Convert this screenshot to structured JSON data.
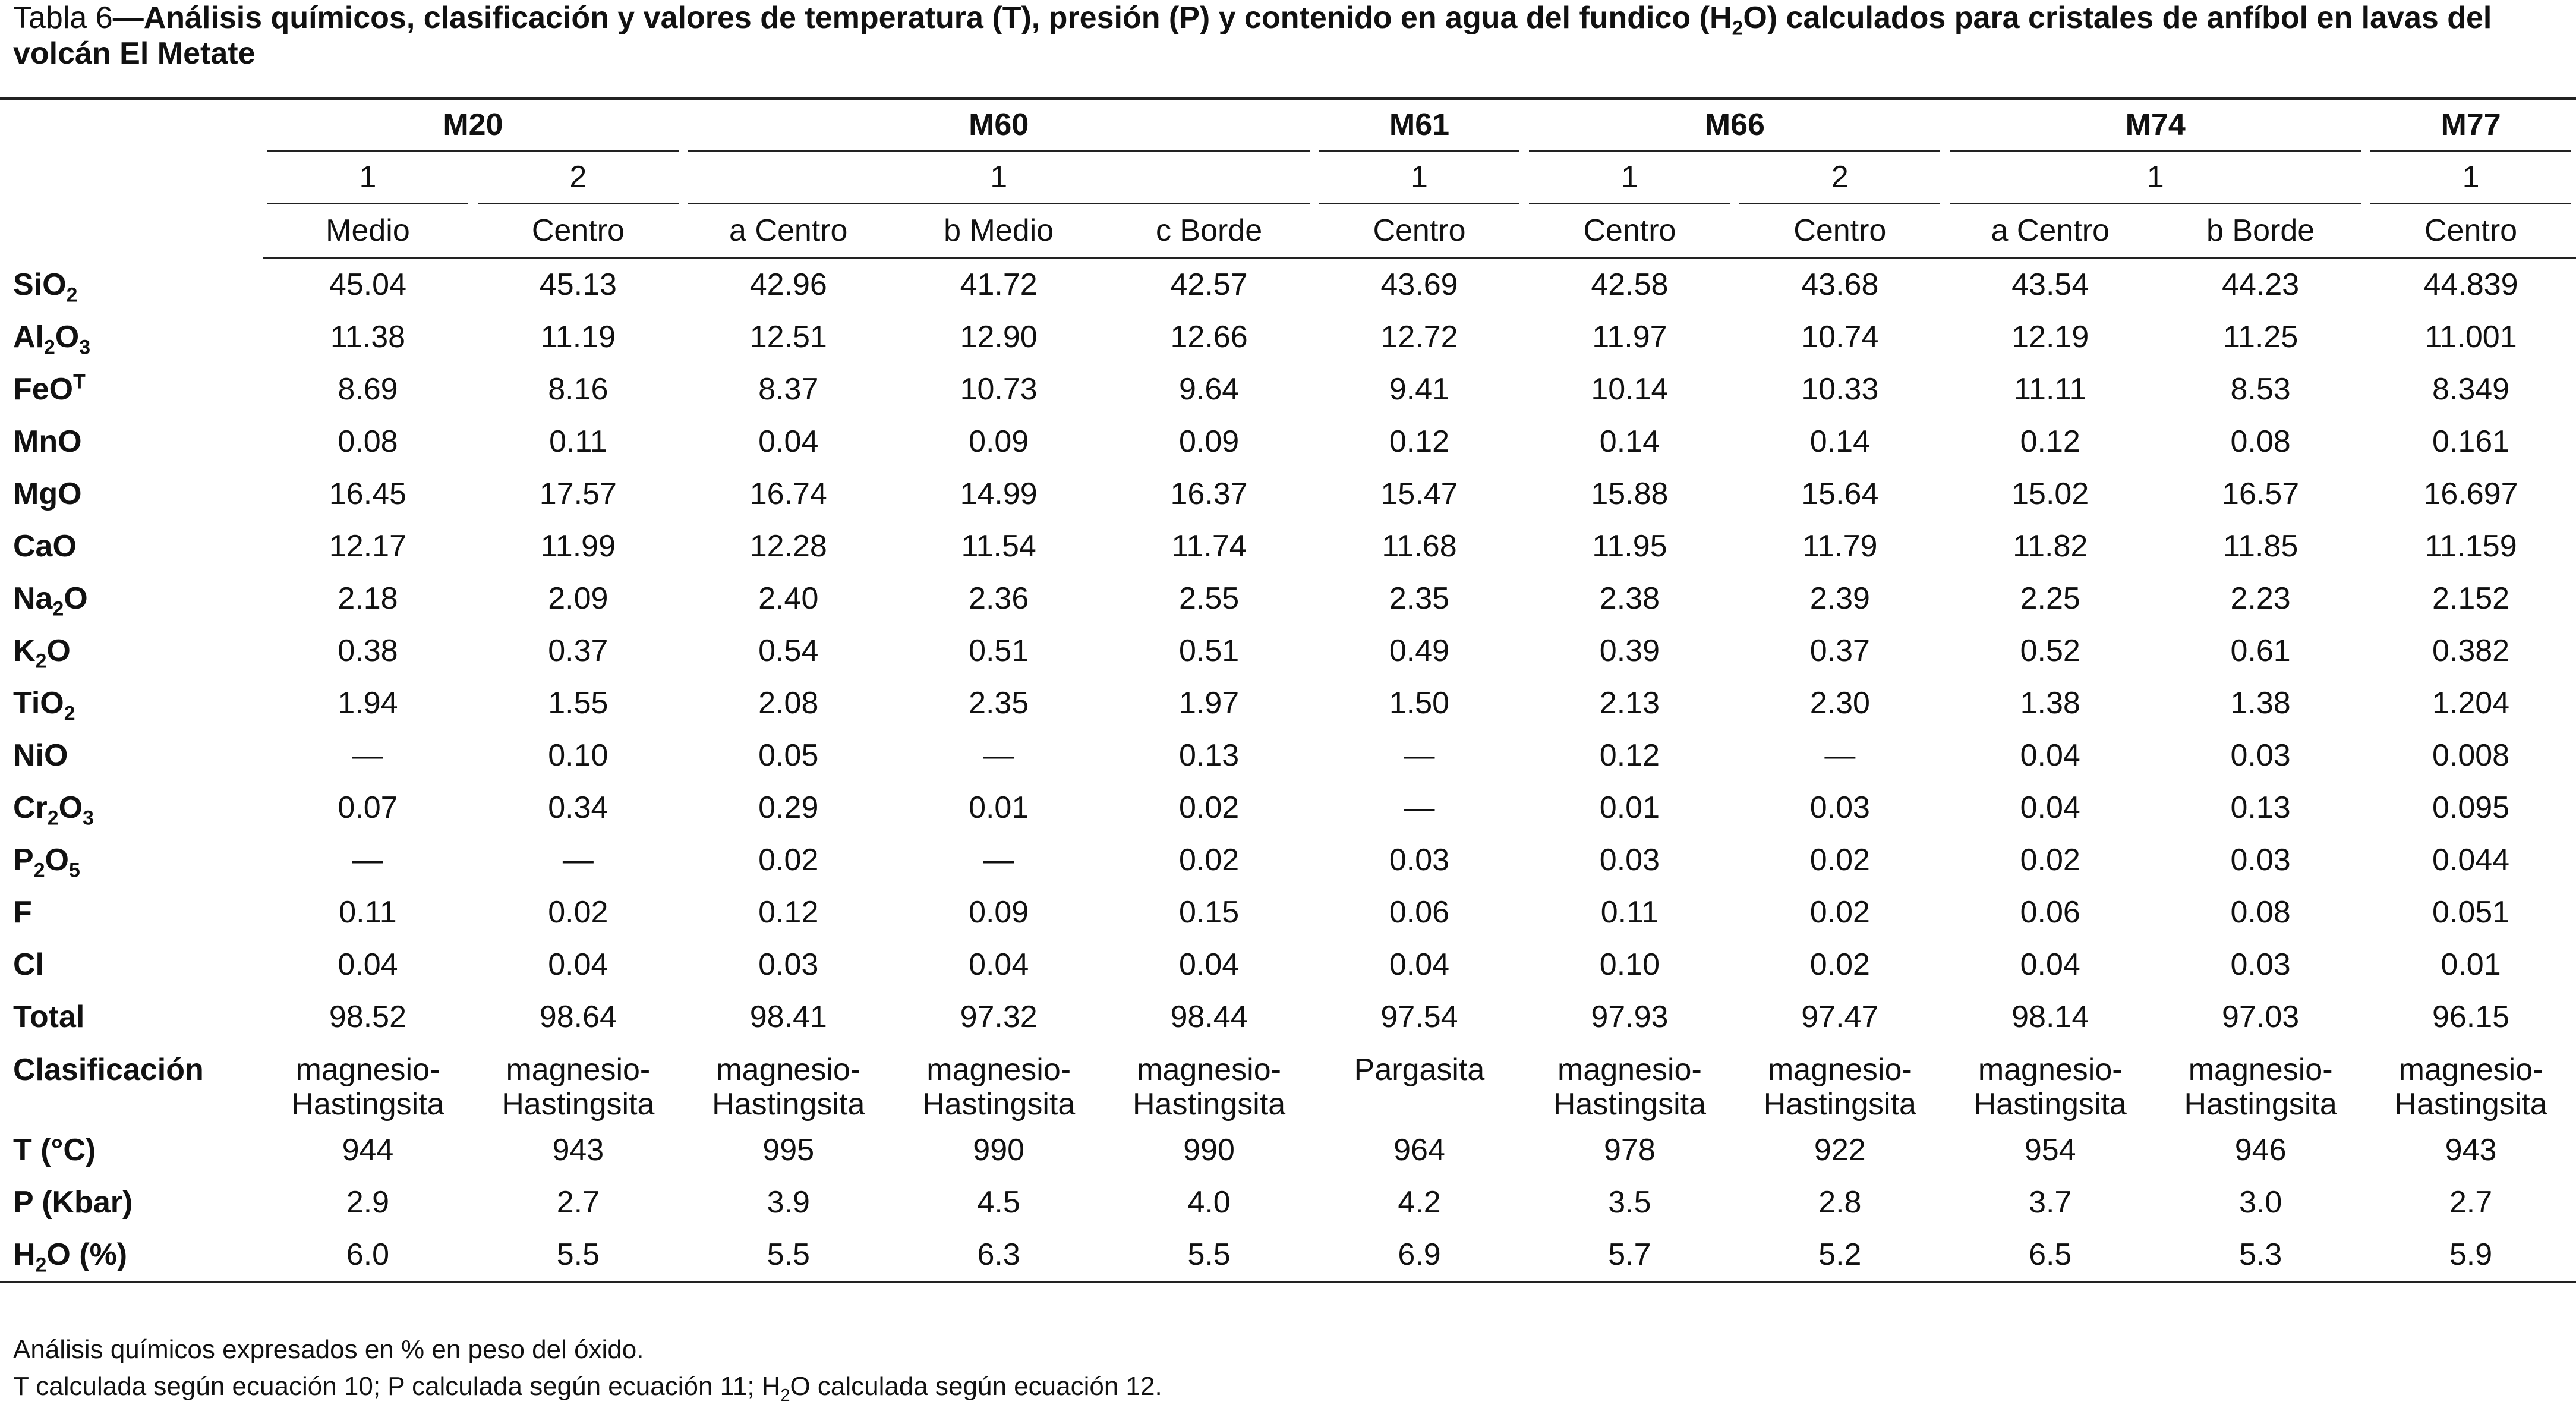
{
  "caption": [
    {
      "text": "Tabla 6"
    },
    {
      "text": "—Análisis químicos, clasificación y valores de temperatura (T), presión (P) y contenido en agua del fundico (H",
      "bold": true
    },
    {
      "text": "2",
      "bold": true,
      "script": "sub"
    },
    {
      "text": "O) calculados para cristales de anfíbol en lavas del volcán El Metate",
      "bold": true
    }
  ],
  "table": {
    "groups": [
      {
        "name": "M20",
        "samples": [
          {
            "name": "1",
            "span": 1
          },
          {
            "name": "2",
            "span": 1
          }
        ]
      },
      {
        "name": "M60",
        "samples": [
          {
            "name": "1",
            "span": 3
          }
        ]
      },
      {
        "name": "M61",
        "samples": [
          {
            "name": "1",
            "span": 1
          }
        ]
      },
      {
        "name": "M66",
        "samples": [
          {
            "name": "1",
            "span": 1
          },
          {
            "name": "2",
            "span": 1
          }
        ]
      },
      {
        "name": "M74",
        "samples": [
          {
            "name": "1",
            "span": 2
          }
        ]
      },
      {
        "name": "M77",
        "samples": [
          {
            "name": "1",
            "span": 1
          }
        ]
      }
    ],
    "subheaders": [
      "Medio",
      "Centro",
      "a Centro",
      "b Medio",
      "c Borde",
      "Centro",
      "Centro",
      "Centro",
      "a Centro",
      "b Borde",
      "Centro"
    ],
    "rows": [
      {
        "label": [
          {
            "text": "SiO"
          },
          {
            "text": "2",
            "script": "sub"
          }
        ],
        "values": [
          "45.04",
          "45.13",
          "42.96",
          "41.72",
          "42.57",
          "43.69",
          "42.58",
          "43.68",
          "43.54",
          "44.23",
          "44.839"
        ]
      },
      {
        "label": [
          {
            "text": "Al"
          },
          {
            "text": "2",
            "script": "sub"
          },
          {
            "text": "O"
          },
          {
            "text": "3",
            "script": "sub"
          }
        ],
        "values": [
          "11.38",
          "11.19",
          "12.51",
          "12.90",
          "12.66",
          "12.72",
          "11.97",
          "10.74",
          "12.19",
          "11.25",
          "11.001"
        ]
      },
      {
        "label": [
          {
            "text": "FeO"
          },
          {
            "text": "T",
            "script": "sup"
          }
        ],
        "values": [
          "8.69",
          "8.16",
          "8.37",
          "10.73",
          "9.64",
          "9.41",
          "10.14",
          "10.33",
          "11.11",
          "8.53",
          "8.349"
        ]
      },
      {
        "label": [
          {
            "text": "MnO"
          }
        ],
        "values": [
          "0.08",
          "0.11",
          "0.04",
          "0.09",
          "0.09",
          "0.12",
          "0.14",
          "0.14",
          "0.12",
          "0.08",
          "0.161"
        ]
      },
      {
        "label": [
          {
            "text": "MgO"
          }
        ],
        "values": [
          "16.45",
          "17.57",
          "16.74",
          "14.99",
          "16.37",
          "15.47",
          "15.88",
          "15.64",
          "15.02",
          "16.57",
          "16.697"
        ]
      },
      {
        "label": [
          {
            "text": "CaO"
          }
        ],
        "values": [
          "12.17",
          "11.99",
          "12.28",
          "11.54",
          "11.74",
          "11.68",
          "11.95",
          "11.79",
          "11.82",
          "11.85",
          "11.159"
        ]
      },
      {
        "label": [
          {
            "text": "Na"
          },
          {
            "text": "2",
            "script": "sub"
          },
          {
            "text": "O"
          }
        ],
        "values": [
          "2.18",
          "2.09",
          "2.40",
          "2.36",
          "2.55",
          "2.35",
          "2.38",
          "2.39",
          "2.25",
          "2.23",
          "2.152"
        ]
      },
      {
        "label": [
          {
            "text": "K"
          },
          {
            "text": "2",
            "script": "sub"
          },
          {
            "text": "O"
          }
        ],
        "values": [
          "0.38",
          "0.37",
          "0.54",
          "0.51",
          "0.51",
          "0.49",
          "0.39",
          "0.37",
          "0.52",
          "0.61",
          "0.382"
        ]
      },
      {
        "label": [
          {
            "text": "TiO"
          },
          {
            "text": "2",
            "script": "sub"
          }
        ],
        "values": [
          "1.94",
          "1.55",
          "2.08",
          "2.35",
          "1.97",
          "1.50",
          "2.13",
          "2.30",
          "1.38",
          "1.38",
          "1.204"
        ]
      },
      {
        "label": [
          {
            "text": "NiO"
          }
        ],
        "values": [
          "—",
          "0.10",
          "0.05",
          "—",
          "0.13",
          "—",
          "0.12",
          "—",
          "0.04",
          "0.03",
          "0.008"
        ]
      },
      {
        "label": [
          {
            "text": "Cr"
          },
          {
            "text": "2",
            "script": "sub"
          },
          {
            "text": "O"
          },
          {
            "text": "3",
            "script": "sub"
          }
        ],
        "values": [
          "0.07",
          "0.34",
          "0.29",
          "0.01",
          "0.02",
          "—",
          "0.01",
          "0.03",
          "0.04",
          "0.13",
          "0.095"
        ]
      },
      {
        "label": [
          {
            "text": "P"
          },
          {
            "text": "2",
            "script": "sub"
          },
          {
            "text": "O"
          },
          {
            "text": "5",
            "script": "sub"
          }
        ],
        "values": [
          "—",
          "—",
          "0.02",
          "—",
          "0.02",
          "0.03",
          "0.03",
          "0.02",
          "0.02",
          "0.03",
          "0.044"
        ]
      },
      {
        "label": [
          {
            "text": "F"
          }
        ],
        "values": [
          "0.11",
          "0.02",
          "0.12",
          "0.09",
          "0.15",
          "0.06",
          "0.11",
          "0.02",
          "0.06",
          "0.08",
          "0.051"
        ]
      },
      {
        "label": [
          {
            "text": "Cl"
          }
        ],
        "values": [
          "0.04",
          "0.04",
          "0.03",
          "0.04",
          "0.04",
          "0.04",
          "0.10",
          "0.02",
          "0.04",
          "0.03",
          "0.01"
        ]
      },
      {
        "label": [
          {
            "text": "Total"
          }
        ],
        "values": [
          "98.52",
          "98.64",
          "98.41",
          "97.32",
          "98.44",
          "97.54",
          "97.93",
          "97.47",
          "98.14",
          "97.03",
          "96.15"
        ]
      },
      {
        "label": [
          {
            "text": "Clasificación"
          }
        ],
        "values": [
          "magnesio-Hastingsita",
          "magnesio-Hastingsita",
          "magnesio-Hastingsita",
          "magnesio-Hastingsita",
          "magnesio-Hastingsita",
          "Pargasita",
          "magnesio-Hastingsita",
          "magnesio-Hastingsita",
          "magnesio-Hastingsita",
          "magnesio-Hastingsita",
          "magnesio-Hastingsita"
        ]
      },
      {
        "label": [
          {
            "text": "T (°C)"
          }
        ],
        "values": [
          "944",
          "943",
          "995",
          "990",
          "990",
          "964",
          "978",
          "922",
          "954",
          "946",
          "943"
        ]
      },
      {
        "label": [
          {
            "text": "P (Kbar)"
          }
        ],
        "values": [
          "2.9",
          "2.7",
          "3.9",
          "4.5",
          "4.0",
          "4.2",
          "3.5",
          "2.8",
          "3.7",
          "3.0",
          "2.7"
        ]
      },
      {
        "label": [
          {
            "text": "H"
          },
          {
            "text": "2",
            "script": "sub"
          },
          {
            "text": "O (%)"
          }
        ],
        "values": [
          "6.0",
          "5.5",
          "5.5",
          "6.3",
          "5.5",
          "6.9",
          "5.7",
          "5.2",
          "6.5",
          "5.3",
          "5.9"
        ]
      }
    ]
  },
  "footnotes": [
    [
      {
        "text": "Análisis químicos expresados en % en peso del óxido."
      }
    ],
    [
      {
        "text": "T calculada según ecuación 10; P calculada según ecuación 11; H"
      },
      {
        "text": "2",
        "script": "sub"
      },
      {
        "text": "O calculada según ecuación 12."
      }
    ]
  ]
}
